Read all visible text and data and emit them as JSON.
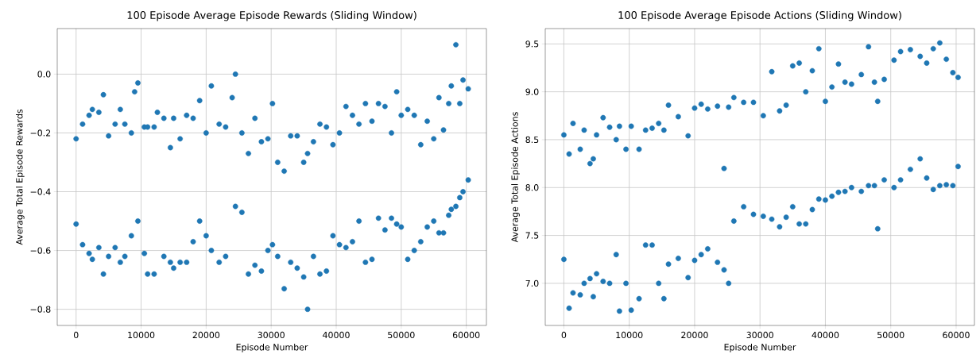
{
  "chart_data": [
    {
      "type": "scatter",
      "title": "100 Episode Average Episode Rewards (Sliding Window)",
      "xlabel": "Episode Number",
      "ylabel": "Average Total Episode Rewards",
      "marker": "circle",
      "grid": true,
      "series": [
        {
          "color": "#1f77b4",
          "x": [
            0,
            0,
            1000,
            1000,
            2000,
            2000,
            2500,
            2500,
            3500,
            3500,
            4200,
            4200,
            5000,
            5000,
            6000,
            6000,
            6800,
            6800,
            7500,
            7500,
            8500,
            8500,
            9000,
            9500,
            9500,
            10500,
            10500,
            11000,
            11000,
            12000,
            12000,
            12500,
            13500,
            13500,
            14500,
            14500,
            15000,
            15000,
            16000,
            16000,
            17000,
            17000,
            18000,
            18000,
            19000,
            19000,
            20000,
            20000,
            20800,
            20800,
            22000,
            22000,
            23000,
            23000,
            24000,
            24500,
            24500,
            25500,
            25500,
            26500,
            26500,
            27500,
            27500,
            28500,
            28500,
            29500,
            29500,
            30200,
            30200,
            31000,
            31000,
            32000,
            32000,
            33000,
            33000,
            34000,
            34000,
            35000,
            35000,
            35600,
            35600,
            36500,
            36500,
            37500,
            37500,
            38500,
            38500,
            39500,
            39500,
            40500,
            40500,
            41500,
            41500,
            42500,
            42500,
            43500,
            43500,
            44500,
            44500,
            45500,
            45500,
            46500,
            46500,
            47500,
            47500,
            48500,
            48500,
            49300,
            49300,
            50000,
            50000,
            51000,
            51000,
            52000,
            52000,
            53000,
            53000,
            54000,
            54000,
            55000,
            55000,
            55800,
            55800,
            56500,
            56500,
            57300,
            57300,
            57700,
            57700,
            58400,
            58400,
            59000,
            59000,
            59500,
            59500,
            60300,
            60300
          ],
          "values": [
            -0.22,
            -0.51,
            -0.17,
            -0.58,
            -0.14,
            -0.61,
            -0.12,
            -0.63,
            -0.13,
            -0.59,
            -0.07,
            -0.68,
            -0.21,
            -0.62,
            -0.17,
            -0.59,
            -0.12,
            -0.64,
            -0.17,
            -0.62,
            -0.2,
            -0.55,
            -0.06,
            -0.03,
            -0.5,
            -0.18,
            -0.61,
            -0.18,
            -0.68,
            -0.18,
            -0.68,
            -0.13,
            -0.15,
            -0.62,
            -0.25,
            -0.64,
            -0.15,
            -0.66,
            -0.22,
            -0.64,
            -0.14,
            -0.64,
            -0.15,
            -0.57,
            -0.09,
            -0.5,
            -0.2,
            -0.55,
            -0.04,
            -0.6,
            -0.17,
            -0.64,
            -0.18,
            -0.62,
            -0.08,
            0.0,
            -0.45,
            -0.2,
            -0.47,
            -0.27,
            -0.68,
            -0.15,
            -0.65,
            -0.23,
            -0.67,
            -0.22,
            -0.6,
            -0.1,
            -0.58,
            -0.3,
            -0.62,
            -0.33,
            -0.73,
            -0.21,
            -0.64,
            -0.21,
            -0.66,
            -0.3,
            -0.69,
            -0.27,
            -0.8,
            -0.23,
            -0.62,
            -0.17,
            -0.68,
            -0.18,
            -0.67,
            -0.24,
            -0.55,
            -0.2,
            -0.58,
            -0.11,
            -0.59,
            -0.14,
            -0.57,
            -0.17,
            -0.5,
            -0.1,
            -0.64,
            -0.16,
            -0.63,
            -0.1,
            -0.49,
            -0.11,
            -0.53,
            -0.2,
            -0.49,
            -0.06,
            -0.51,
            -0.14,
            -0.52,
            -0.12,
            -0.63,
            -0.14,
            -0.6,
            -0.24,
            -0.57,
            -0.16,
            -0.52,
            -0.22,
            -0.5,
            -0.08,
            -0.54,
            -0.19,
            -0.54,
            -0.1,
            -0.48,
            -0.04,
            -0.46,
            0.1,
            -0.45,
            -0.1,
            -0.42,
            -0.02,
            -0.4,
            -0.05,
            -0.36
          ]
        }
      ],
      "xlim": [
        -2900,
        63100
      ],
      "ylim": [
        -0.855,
        0.155
      ],
      "xticks": [
        0,
        10000,
        20000,
        30000,
        40000,
        50000,
        60000
      ],
      "yticks": [
        {
          "value": -0.8,
          "label": "−0.8"
        },
        {
          "value": -0.6,
          "label": "−0.6"
        },
        {
          "value": -0.4,
          "label": "−0.4"
        },
        {
          "value": -0.2,
          "label": "−0.2"
        },
        {
          "value": 0.0,
          "label": "0.0"
        }
      ]
    },
    {
      "type": "scatter",
      "title": "100 Episode Average Episode Actions (Sliding Window)",
      "xlabel": "Episode Number",
      "ylabel": "Average Total Episode Actions",
      "marker": "circle",
      "grid": true,
      "series": [
        {
          "color": "#1f77b4",
          "x": [
            0,
            0,
            800,
            800,
            1400,
            1400,
            2500,
            2500,
            3100,
            3100,
            4000,
            4000,
            4500,
            4500,
            5000,
            5000,
            6000,
            6000,
            7000,
            7000,
            8000,
            8000,
            8500,
            8500,
            9500,
            9500,
            10300,
            10300,
            11500,
            11500,
            12500,
            12500,
            13500,
            13500,
            14500,
            14500,
            15300,
            15300,
            16000,
            16000,
            17500,
            17500,
            19000,
            19000,
            20000,
            20000,
            21000,
            21000,
            22000,
            22000,
            23500,
            23500,
            24500,
            24500,
            25200,
            25200,
            26000,
            26000,
            27500,
            27500,
            29000,
            29000,
            30500,
            30500,
            31800,
            31800,
            33000,
            33000,
            34000,
            34000,
            35000,
            35000,
            36000,
            36000,
            37000,
            37000,
            38000,
            38000,
            39000,
            39000,
            40000,
            40000,
            41000,
            41000,
            42000,
            42000,
            43000,
            43000,
            44000,
            44000,
            45500,
            45500,
            46600,
            46600,
            47500,
            47500,
            48000,
            48000,
            49000,
            49000,
            50500,
            50500,
            51500,
            51500,
            53000,
            53000,
            54500,
            54500,
            55500,
            55500,
            56500,
            56500,
            57500,
            57500,
            58500,
            58500,
            59500,
            59500,
            60300,
            60300
          ],
          "values": [
            8.55,
            7.25,
            8.35,
            6.74,
            8.67,
            6.9,
            8.4,
            6.88,
            8.6,
            7.0,
            8.25,
            7.05,
            8.3,
            6.86,
            8.55,
            7.1,
            8.73,
            7.02,
            8.63,
            7.0,
            8.5,
            7.3,
            8.64,
            6.71,
            8.4,
            7.0,
            8.64,
            6.72,
            8.4,
            6.84,
            8.6,
            7.4,
            8.62,
            7.4,
            8.67,
            7.0,
            8.6,
            6.84,
            8.86,
            7.2,
            8.74,
            7.26,
            8.54,
            7.06,
            8.83,
            7.24,
            8.87,
            7.3,
            8.82,
            7.36,
            8.85,
            7.22,
            8.2,
            7.14,
            8.84,
            7.0,
            8.94,
            7.65,
            8.89,
            7.8,
            8.89,
            7.72,
            8.75,
            7.7,
            9.21,
            7.67,
            8.8,
            7.59,
            8.86,
            7.69,
            9.27,
            7.8,
            9.3,
            7.62,
            9.0,
            7.62,
            9.22,
            7.77,
            9.45,
            7.88,
            8.9,
            7.87,
            9.05,
            7.91,
            9.29,
            7.95,
            9.1,
            7.96,
            9.08,
            8.0,
            9.18,
            7.96,
            9.47,
            8.02,
            9.1,
            8.02,
            8.9,
            7.57,
            9.13,
            8.08,
            9.33,
            8.0,
            9.42,
            8.08,
            9.44,
            8.19,
            9.37,
            8.3,
            9.3,
            8.1,
            9.45,
            7.98,
            9.51,
            8.02,
            9.34,
            8.03,
            9.2,
            8.02,
            9.15,
            8.22
          ]
        }
      ],
      "xlim": [
        -2850,
        62800
      ],
      "ylim": [
        6.56,
        9.66
      ],
      "xticks": [
        0,
        10000,
        20000,
        30000,
        40000,
        50000,
        60000
      ],
      "yticks": [
        {
          "value": 7.0,
          "label": "7.0"
        },
        {
          "value": 7.5,
          "label": "7.5"
        },
        {
          "value": 8.0,
          "label": "8.0"
        },
        {
          "value": 8.5,
          "label": "8.5"
        },
        {
          "value": 9.0,
          "label": "9.0"
        },
        {
          "value": 9.5,
          "label": "9.5"
        }
      ]
    }
  ]
}
